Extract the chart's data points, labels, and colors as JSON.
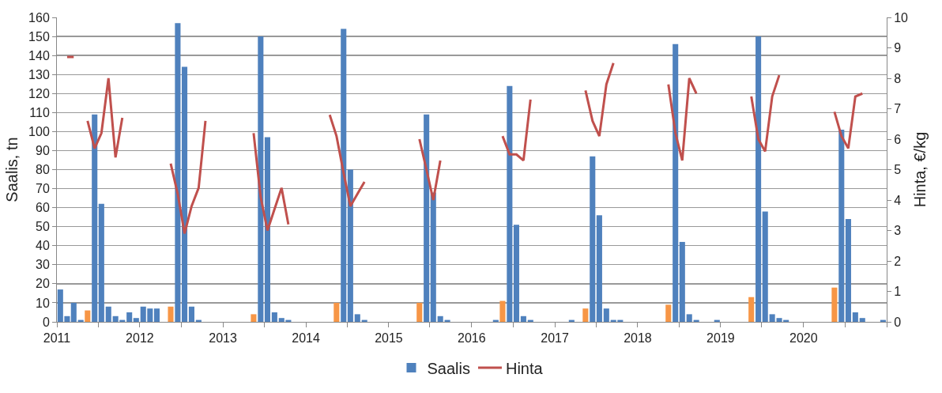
{
  "chart_data": {
    "type": "bar",
    "ylabel": "Saalis, tn",
    "y2label": "Hinta, €/kg",
    "x": [
      "2011-01-16",
      "2011-02-15",
      "2011-03-16",
      "2011-04-16",
      "2011-05-16",
      "2011-06-16",
      "2011-07-16",
      "2011-08-16",
      "2011-09-16",
      "2011-10-16",
      "2011-11-16",
      "2011-12-16",
      "2012-01-16",
      "2012-02-15",
      "2012-03-16",
      "2012-04-16",
      "2012-05-16",
      "2012-06-16",
      "2012-07-16",
      "2012-08-16",
      "2012-09-16",
      "2012-10-16",
      "2012-11-16",
      "2012-12-16",
      "2013-01-16",
      "2013-02-15",
      "2013-03-16",
      "2013-04-16",
      "2013-05-16",
      "2013-06-16",
      "2013-07-16",
      "2013-08-16",
      "2013-09-16",
      "2013-10-16",
      "2013-11-16",
      "2013-12-16",
      "2014-01-16",
      "2014-02-15",
      "2014-03-16",
      "2014-04-16",
      "2014-05-16",
      "2014-06-16",
      "2014-07-16",
      "2014-08-16",
      "2014-09-16",
      "2014-10-16",
      "2014-11-16",
      "2014-12-16",
      "2015-01-16",
      "2015-02-15",
      "2015-03-16",
      "2015-04-16",
      "2015-05-16",
      "2015-06-16",
      "2015-07-16",
      "2015-08-16",
      "2015-09-16",
      "2015-10-16",
      "2015-11-16",
      "2015-12-16",
      "2016-01-16",
      "2016-02-15",
      "2016-03-16",
      "2016-04-16",
      "2016-05-16",
      "2016-06-16",
      "2016-07-16",
      "2016-08-16",
      "2016-09-16",
      "2016-10-16",
      "2016-11-16",
      "2016-12-16",
      "2017-01-16",
      "2017-02-15",
      "2017-03-16",
      "2017-04-16",
      "2017-05-16",
      "2017-06-16",
      "2017-07-16",
      "2017-08-16",
      "2017-09-16",
      "2017-10-16",
      "2017-11-16",
      "2017-12-16",
      "2018-01-16",
      "2018-02-15",
      "2018-03-16",
      "2018-04-16",
      "2018-05-16",
      "2018-06-16",
      "2018-07-16",
      "2018-08-16",
      "2018-09-16",
      "2018-10-16",
      "2018-11-16",
      "2018-12-16",
      "2019-01-16",
      "2019-02-15",
      "2019-03-16",
      "2019-04-16",
      "2019-05-16",
      "2019-06-16",
      "2019-07-16",
      "2019-08-16",
      "2019-09-16",
      "2019-10-16",
      "2019-11-16",
      "2019-12-16",
      "2020-01-16",
      "2020-02-15",
      "2020-03-16",
      "2020-04-16",
      "2020-05-16",
      "2020-06-16",
      "2020-07-16",
      "2020-08-16",
      "2020-09-16",
      "2020-10-16",
      "2020-11-16",
      "2020-12-16"
    ],
    "series": [
      {
        "name": "Saalis",
        "colors": [
          "#4f81bd",
          "#4f81bd",
          "#4f81bd",
          "#4f81bd",
          "#f79646",
          "#4f81bd",
          "#4f81bd",
          "#4f81bd",
          "#4f81bd",
          "#4f81bd",
          "#4f81bd",
          "#4f81bd",
          "#4f81bd",
          "#4f81bd",
          "#4f81bd",
          "#4f81bd",
          "#f79646",
          "#4f81bd",
          "#4f81bd",
          "#4f81bd",
          "#4f81bd",
          "#4f81bd",
          "#4f81bd",
          "#4f81bd",
          "#4f81bd",
          "#4f81bd",
          "#4f81bd",
          "#4f81bd",
          "#f79646",
          "#4f81bd",
          "#4f81bd",
          "#4f81bd",
          "#4f81bd",
          "#4f81bd",
          "#4f81bd",
          "#4f81bd",
          "#4f81bd",
          "#4f81bd",
          "#4f81bd",
          "#4f81bd",
          "#f79646",
          "#4f81bd",
          "#4f81bd",
          "#4f81bd",
          "#4f81bd",
          "#4f81bd",
          "#4f81bd",
          "#4f81bd",
          "#4f81bd",
          "#4f81bd",
          "#4f81bd",
          "#4f81bd",
          "#f79646",
          "#4f81bd",
          "#4f81bd",
          "#4f81bd",
          "#4f81bd",
          "#4f81bd",
          "#4f81bd",
          "#4f81bd",
          "#4f81bd",
          "#4f81bd",
          "#4f81bd",
          "#4f81bd",
          "#f79646",
          "#4f81bd",
          "#4f81bd",
          "#4f81bd",
          "#4f81bd",
          "#4f81bd",
          "#4f81bd",
          "#4f81bd",
          "#4f81bd",
          "#4f81bd",
          "#4f81bd",
          "#4f81bd",
          "#f79646",
          "#4f81bd",
          "#4f81bd",
          "#4f81bd",
          "#4f81bd",
          "#4f81bd",
          "#4f81bd",
          "#4f81bd",
          "#4f81bd",
          "#4f81bd",
          "#4f81bd",
          "#4f81bd",
          "#f79646",
          "#4f81bd",
          "#4f81bd",
          "#4f81bd",
          "#4f81bd",
          "#4f81bd",
          "#4f81bd",
          "#4f81bd",
          "#4f81bd",
          "#4f81bd",
          "#4f81bd",
          "#4f81bd",
          "#f79646",
          "#4f81bd",
          "#4f81bd",
          "#4f81bd",
          "#4f81bd",
          "#4f81bd",
          "#4f81bd",
          "#4f81bd",
          "#4f81bd",
          "#4f81bd",
          "#4f81bd",
          "#4f81bd",
          "#f79646",
          "#4f81bd",
          "#4f81bd",
          "#4f81bd",
          "#4f81bd",
          "#4f81bd",
          "#4f81bd",
          "#4f81bd"
        ],
        "values": [
          17,
          3,
          10,
          1,
          6,
          109,
          62,
          8,
          3,
          1,
          5,
          2,
          8,
          7,
          7,
          0,
          8,
          157,
          134,
          8,
          1,
          0,
          0,
          0,
          0,
          0,
          0,
          0,
          4,
          150,
          97,
          5,
          2,
          1,
          0,
          0,
          0,
          0,
          0,
          0,
          10,
          154,
          80,
          4,
          1,
          0,
          0,
          0,
          0,
          0,
          0,
          0,
          10,
          109,
          68,
          3,
          1,
          0,
          0,
          0,
          0,
          0,
          0,
          1,
          11,
          124,
          51,
          3,
          1,
          0,
          0,
          0,
          0,
          0,
          1,
          0,
          7,
          87,
          56,
          7,
          1,
          1,
          0,
          0,
          0,
          0,
          0,
          0,
          9,
          146,
          42,
          4,
          1,
          0,
          0,
          1,
          0,
          0,
          0,
          0,
          13,
          150,
          58,
          4,
          2,
          1,
          0,
          0,
          0,
          0,
          0,
          0,
          18,
          101,
          54,
          5,
          2,
          0,
          0,
          1
        ]
      },
      {
        "name": "Hinta",
        "type": "line",
        "axis": "y2",
        "color": "#c0504d",
        "values": [
          null,
          8.7,
          8.7,
          null,
          6.6,
          5.7,
          6.2,
          8.0,
          5.4,
          6.7,
          null,
          null,
          null,
          null,
          null,
          null,
          5.2,
          4.2,
          2.9,
          3.8,
          4.4,
          6.6,
          null,
          null,
          null,
          null,
          null,
          null,
          6.2,
          4.1,
          3.0,
          3.7,
          4.4,
          3.2,
          null,
          null,
          null,
          null,
          null,
          6.8,
          6.1,
          4.9,
          3.8,
          4.2,
          4.6,
          null,
          null,
          null,
          null,
          null,
          null,
          null,
          6.0,
          5.0,
          4.0,
          5.3,
          null,
          null,
          null,
          null,
          null,
          null,
          null,
          null,
          6.1,
          5.5,
          5.5,
          5.3,
          7.3,
          null,
          null,
          null,
          null,
          null,
          null,
          null,
          7.6,
          6.6,
          6.1,
          7.8,
          8.5,
          null,
          null,
          null,
          null,
          null,
          null,
          null,
          7.8,
          6.2,
          5.3,
          8.0,
          7.5,
          null,
          null,
          null,
          null,
          null,
          null,
          null,
          7.4,
          6.0,
          5.6,
          7.4,
          8.1,
          null,
          null,
          null,
          null,
          null,
          null,
          null,
          6.9,
          6.1,
          5.7,
          7.4,
          7.5,
          null,
          null,
          null
        ]
      }
    ],
    "xlim": [
      "2011-01",
      "2021-01"
    ],
    "xticks": [
      {
        "value": "2011-01",
        "label": "2011"
      },
      {
        "value": "2011-07",
        "label": null
      },
      {
        "value": "2012-01",
        "label": "2012"
      },
      {
        "value": "2012-07",
        "label": null
      },
      {
        "value": "2013-01",
        "label": "2013"
      },
      {
        "value": "2013-07",
        "label": null
      },
      {
        "value": "2014-01",
        "label": "2014"
      },
      {
        "value": "2014-07",
        "label": null
      },
      {
        "value": "2015-01",
        "label": "2015"
      },
      {
        "value": "2015-07",
        "label": null
      },
      {
        "value": "2016-01",
        "label": "2016"
      },
      {
        "value": "2016-07",
        "label": null
      },
      {
        "value": "2017-01",
        "label": "2017"
      },
      {
        "value": "2017-07",
        "label": null
      },
      {
        "value": "2018-01",
        "label": "2018"
      },
      {
        "value": "2018-07",
        "label": null
      },
      {
        "value": "2019-01",
        "label": "2019"
      },
      {
        "value": "2019-07",
        "label": null
      },
      {
        "value": "2020-01",
        "label": "2020"
      },
      {
        "value": "2020-07",
        "label": null
      },
      {
        "value": "2021-01",
        "label": null
      }
    ],
    "ylim": [
      0,
      160
    ],
    "yticks": [
      0,
      10,
      20,
      30,
      40,
      50,
      60,
      70,
      80,
      90,
      100,
      110,
      120,
      130,
      140,
      150,
      160
    ],
    "y2lim": [
      0,
      10
    ],
    "y2ticks": [
      0,
      1,
      2,
      3,
      4,
      5,
      6,
      7,
      8,
      9,
      10
    ],
    "grid": "y",
    "legend": "bottom",
    "marker": "none",
    "line_style": "solid"
  }
}
